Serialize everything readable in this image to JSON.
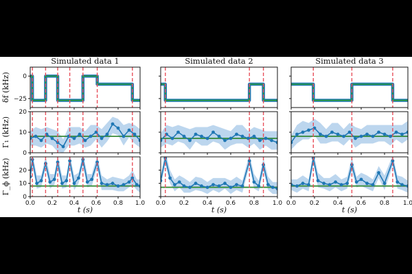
{
  "figure": {
    "panel_titles": [
      "Simulated data 1",
      "Simulated data 2",
      "Simulated data 3"
    ],
    "row_labels": [
      "δf (kHz)",
      "Γ₁ (kHz)",
      "Γ_ϕ (kHz)"
    ],
    "xlabel": "t (s)",
    "x_ticks": [
      "0.0",
      "0.2",
      "0.4",
      "0.6",
      "0.8",
      "1.0"
    ],
    "row_ticks": [
      [
        "0",
        "−25"
      ],
      [
        "0",
        "10",
        "20"
      ],
      [
        "0",
        "10",
        "20"
      ]
    ]
  },
  "colors": {
    "data": "#1f77b4",
    "band": "#a6c8e8",
    "true": "#2ca02c",
    "estimate": "#1b1b1b",
    "switch": "#e8505b"
  },
  "chart_data": [
    {
      "title": "Simulated data 1",
      "type": "line",
      "xlabel": "t (s)",
      "xlim": [
        0,
        1
      ],
      "switch_times": [
        0.02,
        0.14,
        0.25,
        0.36,
        0.48,
        0.61,
        0.93
      ],
      "delta_f": {
        "ylabel": "δf (kHz)",
        "ylim": [
          -35,
          10
        ],
        "segments": [
          [
            0.0,
            0.02,
            0
          ],
          [
            0.02,
            0.14,
            -27
          ],
          [
            0.14,
            0.25,
            0
          ],
          [
            0.25,
            0.36,
            -27
          ],
          [
            0.36,
            0.48,
            -27
          ],
          [
            0.48,
            0.61,
            0
          ],
          [
            0.61,
            0.93,
            -9
          ],
          [
            0.93,
            1.0,
            -27
          ]
        ]
      },
      "gamma1": {
        "ylabel": "Γ₁ (kHz)",
        "ylim": [
          0,
          20
        ],
        "true_value": 8,
        "x": [
          0.0,
          0.05,
          0.1,
          0.15,
          0.2,
          0.25,
          0.3,
          0.35,
          0.4,
          0.45,
          0.5,
          0.55,
          0.6,
          0.65,
          0.7,
          0.75,
          0.8,
          0.85,
          0.9,
          0.95,
          1.0
        ],
        "y": [
          7,
          8,
          6,
          9,
          7,
          5,
          3,
          8,
          7,
          9,
          6,
          8,
          10,
          7,
          9,
          14,
          12,
          8,
          11,
          9,
          6
        ],
        "band": 3.5
      },
      "gammaphi": {
        "ylabel": "Γ_ϕ (kHz)",
        "ylim": [
          0,
          30
        ],
        "true_value": 8,
        "x": [
          0.0,
          0.02,
          0.06,
          0.1,
          0.14,
          0.18,
          0.22,
          0.25,
          0.29,
          0.33,
          0.36,
          0.4,
          0.44,
          0.48,
          0.52,
          0.56,
          0.61,
          0.65,
          0.7,
          0.75,
          0.8,
          0.85,
          0.9,
          0.93,
          0.97,
          1.0
        ],
        "y": [
          15,
          28,
          10,
          12,
          25,
          11,
          13,
          26,
          10,
          12,
          27,
          10,
          14,
          28,
          11,
          13,
          26,
          10,
          9,
          10,
          8,
          9,
          11,
          14,
          9,
          8
        ],
        "band": 4
      }
    },
    {
      "title": "Simulated data 2",
      "type": "line",
      "xlabel": "t (s)",
      "xlim": [
        0,
        1
      ],
      "switch_times": [
        0.04,
        0.76,
        0.88
      ],
      "delta_f": {
        "ylabel": "δf (kHz)",
        "ylim": [
          -35,
          10
        ],
        "segments": [
          [
            0.0,
            0.04,
            -9
          ],
          [
            0.04,
            0.76,
            -27
          ],
          [
            0.76,
            0.88,
            -9
          ],
          [
            0.88,
            1.0,
            -27
          ]
        ]
      },
      "gamma1": {
        "ylabel": "Γ₁ (kHz)",
        "ylim": [
          0,
          20
        ],
        "true_value": 7,
        "x": [
          0.0,
          0.05,
          0.1,
          0.15,
          0.2,
          0.25,
          0.3,
          0.35,
          0.4,
          0.45,
          0.5,
          0.55,
          0.6,
          0.65,
          0.7,
          0.75,
          0.8,
          0.85,
          0.9,
          0.95,
          1.0
        ],
        "y": [
          6,
          9,
          7,
          10,
          8,
          6,
          9,
          8,
          7,
          10,
          8,
          6,
          7,
          9,
          8,
          7,
          8,
          6,
          7,
          6,
          5
        ],
        "band": 3.5
      },
      "gammaphi": {
        "ylabel": "Γ_ϕ (kHz)",
        "ylim": [
          0,
          30
        ],
        "true_value": 7,
        "x": [
          0.0,
          0.04,
          0.08,
          0.12,
          0.16,
          0.2,
          0.25,
          0.3,
          0.35,
          0.4,
          0.45,
          0.5,
          0.55,
          0.6,
          0.65,
          0.7,
          0.76,
          0.8,
          0.84,
          0.88,
          0.92,
          0.96,
          1.0
        ],
        "y": [
          12,
          29,
          14,
          9,
          11,
          8,
          7,
          10,
          8,
          7,
          9,
          8,
          10,
          7,
          9,
          8,
          27,
          11,
          8,
          24,
          9,
          7,
          6
        ],
        "band": 4
      }
    },
    {
      "title": "Simulated data 3",
      "type": "line",
      "xlabel": "t (s)",
      "xlim": [
        0,
        1
      ],
      "switch_times": [
        0.19,
        0.52,
        0.87
      ],
      "delta_f": {
        "ylabel": "δf (kHz)",
        "ylim": [
          -35,
          10
        ],
        "segments": [
          [
            0.0,
            0.19,
            -9
          ],
          [
            0.19,
            0.52,
            -27
          ],
          [
            0.52,
            0.87,
            -9
          ],
          [
            0.87,
            1.0,
            -27
          ]
        ]
      },
      "gamma1": {
        "ylabel": "Γ₁ (kHz)",
        "ylim": [
          0,
          20
        ],
        "true_value": 8,
        "x": [
          0.0,
          0.05,
          0.1,
          0.15,
          0.2,
          0.25,
          0.3,
          0.35,
          0.4,
          0.45,
          0.5,
          0.55,
          0.6,
          0.65,
          0.7,
          0.75,
          0.8,
          0.85,
          0.9,
          0.95,
          1.0
        ],
        "y": [
          5,
          9,
          10,
          11,
          12,
          9,
          8,
          10,
          9,
          8,
          10,
          7,
          8,
          9,
          8,
          10,
          9,
          8,
          10,
          9,
          10
        ],
        "band": 3.5
      },
      "gammaphi": {
        "ylabel": "Γ_ϕ (kHz)",
        "ylim": [
          0,
          30
        ],
        "true_value": 8,
        "x": [
          0.0,
          0.05,
          0.1,
          0.15,
          0.19,
          0.23,
          0.28,
          0.33,
          0.38,
          0.43,
          0.48,
          0.52,
          0.56,
          0.6,
          0.65,
          0.7,
          0.75,
          0.8,
          0.87,
          0.91,
          0.95,
          1.0
        ],
        "y": [
          9,
          8,
          10,
          9,
          29,
          12,
          10,
          9,
          11,
          9,
          10,
          24,
          11,
          13,
          10,
          9,
          18,
          10,
          27,
          11,
          9,
          8
        ],
        "band": 4
      }
    }
  ]
}
